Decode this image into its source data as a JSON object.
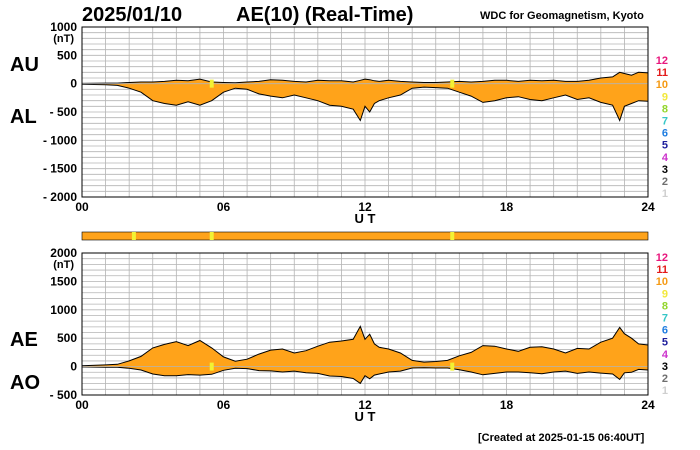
{
  "header": {
    "date": "2025/01/10",
    "title": "AE(10) (Real-Time)",
    "source": "WDC for Geomagnetism, Kyoto"
  },
  "footer": {
    "created": "[Created at 2025-01-15 06:40UT]"
  },
  "colors": {
    "fill": "#ffa31a",
    "station_present": "#ffa31a",
    "station_marker": "#f2f233",
    "grid": "#b4b4b4",
    "line": "#000000"
  },
  "station_scale": [
    {
      "label": "12",
      "color": "#e8177d"
    },
    {
      "label": "11",
      "color": "#e31a1a"
    },
    {
      "label": "10",
      "color": "#f59a14"
    },
    {
      "label": "9",
      "color": "#f2e83a"
    },
    {
      "label": "8",
      "color": "#93d62c"
    },
    {
      "label": "7",
      "color": "#36c7c7"
    },
    {
      "label": "6",
      "color": "#1f7de0"
    },
    {
      "label": "5",
      "color": "#1e1e9c"
    },
    {
      "label": "4",
      "color": "#cc33cc"
    },
    {
      "label": "3",
      "color": "#000000"
    },
    {
      "label": "2",
      "color": "#6e6e6e"
    },
    {
      "label": "1",
      "color": "#cfcfcf"
    }
  ],
  "station_bar": {
    "range": [
      0,
      24
    ],
    "markers": [
      2.2,
      5.5,
      15.7
    ]
  },
  "chart_data": [
    {
      "type": "area",
      "series_labels": [
        "AU",
        "AL"
      ],
      "ylabel": "(nT)",
      "xlabel": "U T",
      "xlim": [
        0,
        24
      ],
      "ylim": [
        -2000,
        1000
      ],
      "grid": true,
      "xticks": [
        0,
        6,
        12,
        18,
        24
      ],
      "xtick_labels": [
        "00",
        "06",
        "12",
        "18",
        "24"
      ],
      "yticks": [
        1000,
        500,
        0,
        -500,
        -1000,
        -1500,
        -2000
      ],
      "ytick_labels": [
        "1000",
        "500",
        "0",
        "- 500",
        "- 1000",
        "- 1500",
        "- 2000"
      ],
      "markers": [
        5.5,
        15.7
      ],
      "x": [
        0,
        1,
        1.5,
        2,
        2.5,
        3,
        3.5,
        4,
        4.5,
        5,
        5.5,
        6,
        6.5,
        7,
        7.5,
        8,
        8.5,
        9,
        9.5,
        10,
        10.5,
        11,
        11.5,
        11.8,
        12,
        12.2,
        12.4,
        12.6,
        13,
        13.5,
        14,
        14.5,
        15,
        15.5,
        16,
        16.5,
        17,
        17.5,
        18,
        18.5,
        19,
        19.5,
        20,
        20.5,
        21,
        21.5,
        22,
        22.5,
        22.8,
        23,
        23.3,
        23.6,
        24
      ],
      "upper": [
        5,
        10,
        10,
        20,
        30,
        30,
        40,
        60,
        50,
        80,
        30,
        20,
        15,
        30,
        40,
        70,
        60,
        40,
        30,
        60,
        50,
        50,
        30,
        60,
        80,
        70,
        50,
        40,
        60,
        40,
        30,
        20,
        20,
        30,
        40,
        30,
        40,
        60,
        60,
        40,
        60,
        50,
        60,
        40,
        40,
        60,
        100,
        120,
        200,
        180,
        150,
        200,
        190
      ],
      "lower": [
        -10,
        -20,
        -30,
        -80,
        -150,
        -300,
        -350,
        -380,
        -320,
        -380,
        -300,
        -150,
        -80,
        -100,
        -180,
        -220,
        -250,
        -200,
        -250,
        -300,
        -380,
        -400,
        -450,
        -650,
        -400,
        -500,
        -350,
        -300,
        -250,
        -200,
        -80,
        -60,
        -70,
        -80,
        -150,
        -220,
        -330,
        -300,
        -250,
        -230,
        -280,
        -300,
        -250,
        -200,
        -280,
        -250,
        -330,
        -380,
        -650,
        -400,
        -350,
        -300,
        -310
      ]
    },
    {
      "type": "area",
      "series_labels": [
        "AE",
        "AO"
      ],
      "ylabel": "(nT)",
      "xlabel": "U T",
      "xlim": [
        0,
        24
      ],
      "ylim": [
        -500,
        2000
      ],
      "grid": true,
      "xticks": [
        0,
        6,
        12,
        18,
        24
      ],
      "xtick_labels": [
        "00",
        "06",
        "12",
        "18",
        "24"
      ],
      "yticks": [
        2000,
        1500,
        1000,
        500,
        0,
        -500
      ],
      "ytick_labels": [
        "2000",
        "1500",
        "1000",
        "500",
        "0",
        "- 500"
      ],
      "markers": [
        5.5,
        15.7
      ],
      "x": [
        0,
        1,
        1.5,
        2,
        2.5,
        3,
        3.5,
        4,
        4.5,
        5,
        5.5,
        6,
        6.5,
        7,
        7.5,
        8,
        8.5,
        9,
        9.5,
        10,
        10.5,
        11,
        11.5,
        11.8,
        12,
        12.2,
        12.4,
        12.6,
        13,
        13.5,
        14,
        14.5,
        15,
        15.5,
        16,
        16.5,
        17,
        17.5,
        18,
        18.5,
        19,
        19.5,
        20,
        20.5,
        21,
        21.5,
        22,
        22.5,
        22.8,
        23,
        23.3,
        23.6,
        24
      ],
      "upper": [
        15,
        30,
        40,
        100,
        180,
        330,
        390,
        440,
        370,
        460,
        330,
        170,
        95,
        130,
        220,
        290,
        310,
        240,
        280,
        360,
        430,
        450,
        480,
        710,
        480,
        570,
        400,
        340,
        310,
        240,
        110,
        80,
        90,
        110,
        190,
        250,
        370,
        360,
        310,
        270,
        340,
        350,
        310,
        240,
        320,
        310,
        430,
        500,
        690,
        580,
        500,
        400,
        380
      ],
      "lower": [
        -5,
        -10,
        -10,
        -30,
        -60,
        -130,
        -160,
        -160,
        -140,
        -150,
        -135,
        -65,
        -30,
        -35,
        -70,
        -75,
        -95,
        -80,
        -110,
        -120,
        -165,
        -175,
        -210,
        -295,
        -160,
        -215,
        -150,
        -130,
        -95,
        -80,
        -25,
        -20,
        -25,
        -25,
        -55,
        -95,
        -145,
        -120,
        -95,
        -95,
        -110,
        -125,
        -95,
        -80,
        -120,
        -95,
        -115,
        -130,
        -225,
        -110,
        -100,
        -50,
        -60
      ]
    }
  ]
}
